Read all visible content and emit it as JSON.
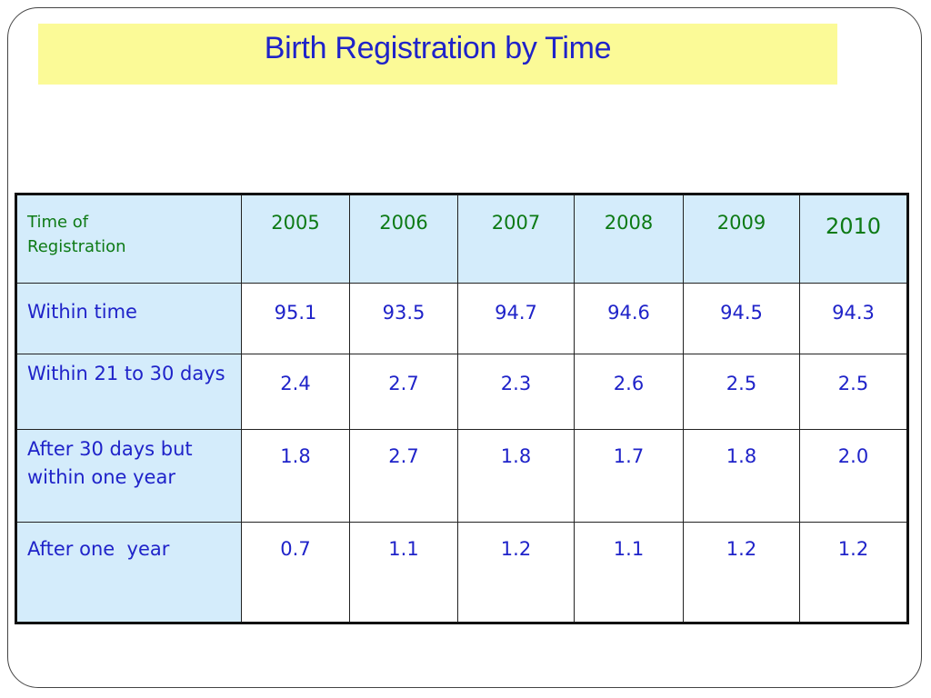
{
  "title": "Birth Registration by Time",
  "table": {
    "header_first_line1": "Time of",
    "header_first_line2": "Registration",
    "years": [
      "2005",
      "2006",
      "2007",
      "2008",
      "2009",
      "2010"
    ],
    "rows": [
      {
        "label": "Within time",
        "values": [
          "95.1",
          "93.5",
          "94.7",
          "94.6",
          "94.5",
          "94.3"
        ]
      },
      {
        "label": "Within 21 to 30 days",
        "values": [
          "2.4",
          "2.7",
          "2.3",
          "2.6",
          "2.5",
          "2.5"
        ]
      },
      {
        "label": "After 30 days but within one year",
        "values": [
          "1.8",
          "2.7",
          "1.8",
          "1.7",
          "1.8",
          "2.0"
        ]
      },
      {
        "label": "After one  year",
        "values": [
          "0.7",
          "1.1",
          "1.2",
          "1.1",
          "1.2",
          "1.2"
        ]
      }
    ]
  },
  "colors": {
    "title_text": "#1f23c9",
    "title_band": "#fbfa97",
    "header_text": "#0d7a15",
    "label_background": "#d4ecfb",
    "body_text": "#1f23c9"
  }
}
